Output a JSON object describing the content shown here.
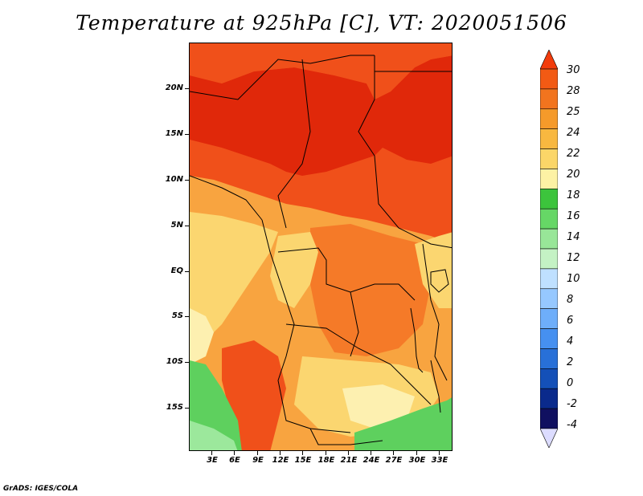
{
  "title": "Temperature at 925hPa [C], VT: 2020051506",
  "footer": "GrADS: IGES/COLA",
  "lat_labels": [
    "20N",
    "15N",
    "10N",
    "5N",
    "EQ",
    "5S",
    "10S",
    "15S"
  ],
  "lon_labels": [
    "3E",
    "6E",
    "9E",
    "12E",
    "15E",
    "18E",
    "21E",
    "24E",
    "27E",
    "30E",
    "33E"
  ],
  "colorbar": {
    "levels": [
      "30",
      "28",
      "25",
      "24",
      "22",
      "20",
      "18",
      "16",
      "14",
      "12",
      "10",
      "8",
      "6",
      "4",
      "2",
      "0",
      "-2",
      "-4"
    ],
    "colors": [
      "#f23c0c",
      "#f25a14",
      "#f2741e",
      "#f59a2a",
      "#f8b840",
      "#fbd668",
      "#fdf2a4",
      "#3cc43c",
      "#66d766",
      "#98e698",
      "#c4f2c4",
      "#bfe0ff",
      "#96c8ff",
      "#6eaefa",
      "#4690f0",
      "#2870d8",
      "#1450b8",
      "#0a2a8c",
      "#101060",
      "#dcdcff"
    ]
  },
  "map": {
    "region_colors": {
      "hot_red": "#e0280a",
      "deep_orange": "#f0501a",
      "orange": "#f57a28",
      "light_orange": "#f8a440",
      "yellow": "#fbd670",
      "pale_yellow": "#fdf0b0",
      "green": "#5ed05e",
      "light_green": "#9ce89c"
    }
  }
}
